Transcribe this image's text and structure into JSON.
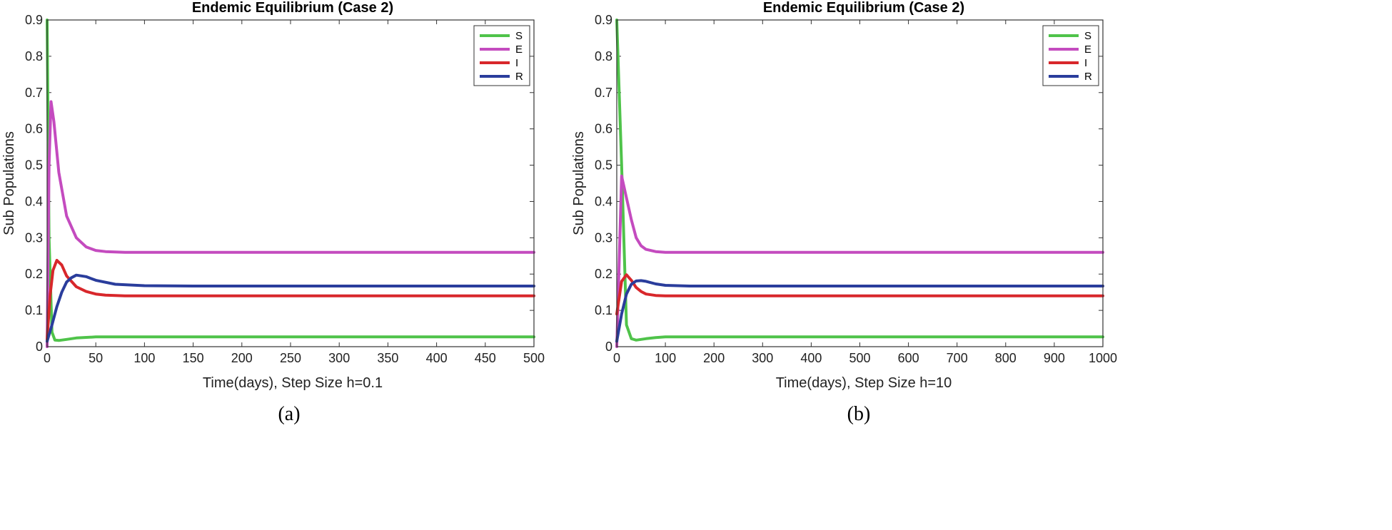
{
  "chart_data": [
    {
      "type": "line",
      "title": "Endemic Equilibrium (Case 2)",
      "xlabel": "Time(days), Step Size h=0.1",
      "ylabel": "Sub Populations",
      "caption": "(a)",
      "xlim": [
        0,
        500
      ],
      "ylim": [
        0,
        0.9
      ],
      "xticks": [
        0,
        50,
        100,
        150,
        200,
        250,
        300,
        350,
        400,
        450,
        500
      ],
      "yticks": [
        0,
        0.1,
        0.2,
        0.3,
        0.4,
        0.5,
        0.6,
        0.7,
        0.8,
        0.9
      ],
      "ytick_labels": [
        "0",
        "0.1",
        "0.2",
        "0.3",
        "0.4",
        "0.5",
        "0.6",
        "0.7",
        "0.8",
        "0.9"
      ],
      "legend": "top-right",
      "series": [
        {
          "name": "S",
          "color": "#4fc34a",
          "x": [
            0,
            2,
            5,
            8,
            12,
            20,
            30,
            50,
            80,
            150,
            500
          ],
          "y": [
            0.9,
            0.3,
            0.04,
            0.018,
            0.017,
            0.02,
            0.024,
            0.027,
            0.027,
            0.027,
            0.027
          ]
        },
        {
          "name": "E",
          "color": "#c44bbf",
          "x": [
            0,
            2,
            4,
            7,
            12,
            20,
            30,
            40,
            50,
            60,
            80,
            120,
            500
          ],
          "y": [
            0,
            0.5,
            0.675,
            0.62,
            0.48,
            0.36,
            0.3,
            0.275,
            0.265,
            0.262,
            0.26,
            0.26,
            0.26
          ]
        },
        {
          "name": "I",
          "color": "#d8272b",
          "x": [
            0,
            3,
            6,
            10,
            15,
            20,
            30,
            40,
            50,
            60,
            80,
            500
          ],
          "y": [
            0.02,
            0.14,
            0.21,
            0.238,
            0.225,
            0.195,
            0.165,
            0.152,
            0.145,
            0.142,
            0.14,
            0.14
          ]
        },
        {
          "name": "R",
          "color": "#2a3d9c",
          "x": [
            0,
            5,
            10,
            15,
            20,
            25,
            30,
            40,
            50,
            70,
            100,
            150,
            500
          ],
          "y": [
            0.015,
            0.06,
            0.11,
            0.15,
            0.178,
            0.19,
            0.197,
            0.193,
            0.183,
            0.172,
            0.168,
            0.167,
            0.167
          ]
        }
      ]
    },
    {
      "type": "line",
      "title": "Endemic Equilibrium (Case 2)",
      "xlabel": "Time(days), Step Size h=10",
      "ylabel": "Sub Populations",
      "caption": "(b)",
      "xlim": [
        0,
        1000
      ],
      "ylim": [
        0,
        0.9
      ],
      "xticks": [
        0,
        100,
        200,
        300,
        400,
        500,
        600,
        700,
        800,
        900,
        1000
      ],
      "yticks": [
        0,
        0.1,
        0.2,
        0.3,
        0.4,
        0.5,
        0.6,
        0.7,
        0.8,
        0.9
      ],
      "ytick_labels": [
        "0",
        "0.1",
        "0.2",
        "0.3",
        "0.4",
        "0.5",
        "0.6",
        "0.7",
        "0.8",
        "0.9"
      ],
      "legend": "top-right",
      "series": [
        {
          "name": "S",
          "color": "#4fc34a",
          "x": [
            0,
            10,
            20,
            30,
            40,
            60,
            80,
            100,
            150,
            1000
          ],
          "y": [
            0.9,
            0.5,
            0.06,
            0.022,
            0.018,
            0.022,
            0.025,
            0.027,
            0.027,
            0.027
          ]
        },
        {
          "name": "E",
          "color": "#c44bbf",
          "x": [
            0,
            10,
            20,
            30,
            40,
            50,
            60,
            80,
            100,
            1000
          ],
          "y": [
            0,
            0.47,
            0.41,
            0.35,
            0.3,
            0.278,
            0.268,
            0.262,
            0.26,
            0.26
          ]
        },
        {
          "name": "I",
          "color": "#d8272b",
          "x": [
            0,
            10,
            20,
            30,
            40,
            50,
            60,
            80,
            100,
            1000
          ],
          "y": [
            0.09,
            0.18,
            0.198,
            0.183,
            0.163,
            0.152,
            0.145,
            0.141,
            0.14,
            0.14
          ]
        },
        {
          "name": "R",
          "color": "#2a3d9c",
          "x": [
            0,
            10,
            20,
            30,
            40,
            50,
            60,
            80,
            100,
            150,
            1000
          ],
          "y": [
            0.015,
            0.09,
            0.145,
            0.172,
            0.181,
            0.182,
            0.18,
            0.173,
            0.169,
            0.167,
            0.167
          ]
        }
      ]
    }
  ]
}
